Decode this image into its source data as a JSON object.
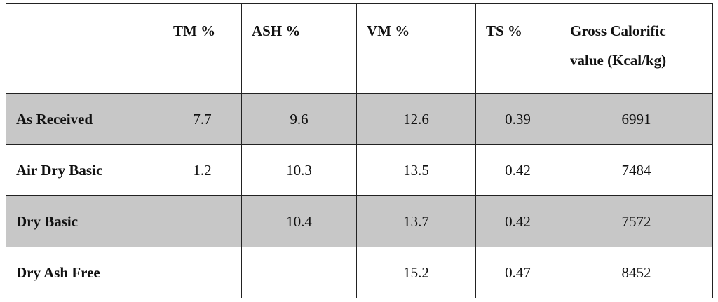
{
  "table": {
    "columns": [
      "TM %",
      "ASH %",
      "VM %",
      "TS %",
      "Gross Calorific value (Kcal/kg)"
    ],
    "rows": [
      {
        "label": "As Received",
        "values": [
          7.7,
          9.6,
          12.6,
          0.39,
          6991
        ]
      },
      {
        "label": "Air Dry Basic",
        "values": [
          1.2,
          10.3,
          13.5,
          0.42,
          7484
        ]
      },
      {
        "label": "Dry Basic",
        "values": [
          null,
          10.4,
          13.7,
          0.42,
          7572
        ]
      },
      {
        "label": "Dry Ash Free",
        "values": [
          null,
          null,
          15.2,
          0.47,
          8452
        ]
      }
    ]
  }
}
